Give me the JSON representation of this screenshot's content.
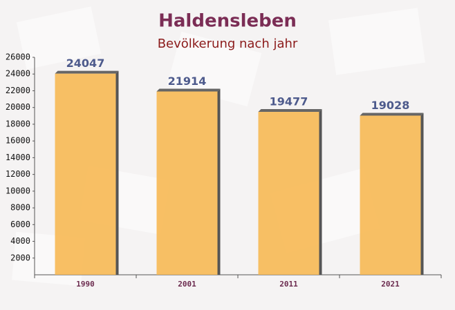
{
  "chart_data": {
    "type": "bar",
    "title": "Haldensleben",
    "subtitle": "Bevölkerung nach jahr",
    "categories": [
      "1990",
      "2001",
      "2011",
      "2021"
    ],
    "values": [
      24047,
      21914,
      19477,
      19028
    ],
    "color": "#f7b54a",
    "ylim": [
      0,
      26000
    ],
    "yticks": [
      2000,
      4000,
      6000,
      8000,
      10000,
      12000,
      14000,
      16000,
      18000,
      20000,
      22000,
      24000,
      26000
    ]
  }
}
